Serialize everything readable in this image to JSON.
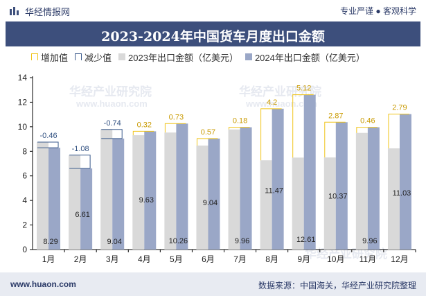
{
  "header": {
    "brand": "华经情报网",
    "tagline": "专业严谨 ● 客观科学",
    "title": "2023-2024年中国货车月度出口金额"
  },
  "legend": {
    "increase": "增加值",
    "decrease": "减少值",
    "s2023": "2023年出口金额（亿美元）",
    "s2024": "2024年出口金额（亿美元）"
  },
  "footer": {
    "website": "www.huaon.com",
    "source": "数据来源：中国海关，华经产业研究院整理"
  },
  "watermark": {
    "text": "华经产业研究院",
    "url": "www.huaon.com"
  },
  "colors": {
    "s2023": "#d9d9d9",
    "s2024": "#9aa7c7",
    "increase": "#f0c419",
    "decrease": "#3a5a8c",
    "title_band": "#3d4f7c"
  },
  "chart_data": {
    "type": "bar",
    "title": "2023-2024年中国货车月度出口金额",
    "categories": [
      "1月",
      "2月",
      "3月",
      "4月",
      "5月",
      "6月",
      "7月",
      "8月",
      "9月",
      "10月",
      "11月",
      "12月"
    ],
    "series": [
      {
        "name": "2023年出口金额（亿美元）",
        "values": [
          8.75,
          7.69,
          9.78,
          9.31,
          9.53,
          8.47,
          9.78,
          7.27,
          7.49,
          7.5,
          9.5,
          8.24
        ]
      },
      {
        "name": "2024年出口金额（亿美元）",
        "values": [
          8.29,
          6.61,
          9.04,
          9.63,
          10.26,
          9.04,
          9.96,
          11.47,
          12.61,
          10.37,
          9.96,
          11.03
        ]
      }
    ],
    "diff_labels": [
      "-0.46",
      "-1.08",
      "-0.74",
      "0.32",
      "0.73",
      "0.57",
      "0.18",
      "4.2",
      "5.12",
      "2.87",
      "0.46",
      "2.79"
    ],
    "value_labels": [
      "8.29",
      "6.61",
      "9.04",
      "9.63",
      "10.26",
      "9.04",
      "9.96",
      "11.47",
      "12.61",
      "10.37",
      "9.96",
      "11.03"
    ],
    "yticks": [
      "0",
      "2",
      "4",
      "6",
      "8",
      "10",
      "12",
      "14"
    ],
    "ylim": [
      0,
      14
    ],
    "grid": false,
    "legend_position": "top"
  }
}
